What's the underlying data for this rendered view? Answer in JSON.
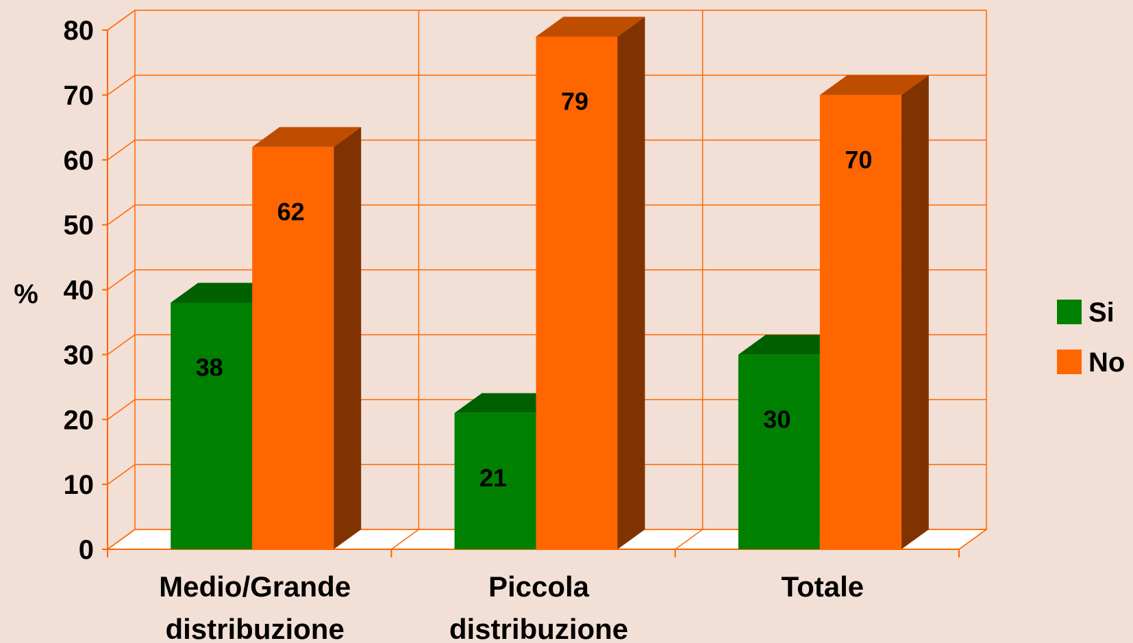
{
  "chart_data": {
    "type": "bar",
    "ylabel": "%",
    "ylim": [
      0,
      80
    ],
    "yticks": [
      "0",
      "10",
      "20",
      "30",
      "40",
      "50",
      "60",
      "70",
      "80"
    ],
    "categories": [
      [
        "Medio/Grande",
        "distribuzione"
      ],
      [
        "Piccola",
        "distribuzione"
      ],
      [
        "Totale"
      ]
    ],
    "series": [
      {
        "name": "Si",
        "values": [
          38,
          21,
          30
        ],
        "color": "#008000"
      },
      {
        "name": "No",
        "values": [
          62,
          79,
          70
        ],
        "color": "#ff6600"
      }
    ],
    "data_labels": [
      "38",
      "21",
      "30",
      "62",
      "79",
      "70"
    ],
    "grid": true,
    "legend": "right",
    "style": "3d-columns",
    "grid_color": "#ff6600",
    "floor_color": "#ffffff"
  }
}
